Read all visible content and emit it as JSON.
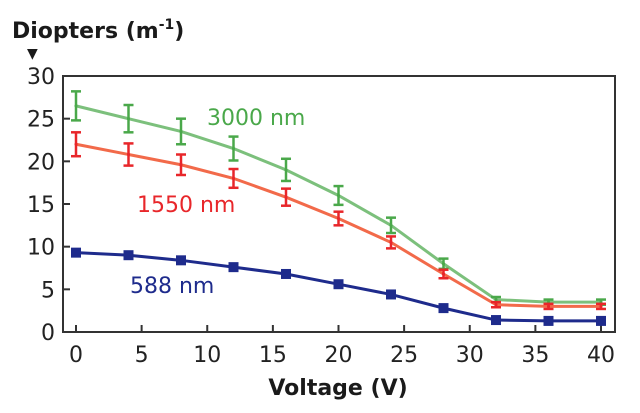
{
  "chart_data": {
    "type": "line",
    "title": "Diopters (m",
    "title_sup": "-1",
    "title_close": ")",
    "ylabel_arrow": "▼",
    "xlabel": "Voltage (V)",
    "ylabel": "Diopters (m-1)",
    "xlim": [
      0,
      40
    ],
    "ylim": [
      0,
      30
    ],
    "x_ticks": [
      0,
      5,
      10,
      15,
      20,
      25,
      30,
      35,
      40
    ],
    "y_ticks": [
      0,
      5,
      10,
      15,
      20,
      25,
      30
    ],
    "x_tick_labels": [
      "0",
      "5",
      "10",
      "15",
      "20",
      "25",
      "30",
      "35",
      "40"
    ],
    "y_tick_labels": [
      "0",
      "5",
      "10",
      "15",
      "20",
      "25",
      "30"
    ],
    "grid": false,
    "x": [
      0,
      4,
      8,
      12,
      16,
      20,
      24,
      28,
      32,
      36,
      40
    ],
    "series": [
      {
        "name": "3000 nm",
        "label": "3000 nm",
        "color": "#4aa84a",
        "line_color": "#7cc07c",
        "marker": "errorbar",
        "values": [
          26.5,
          25.0,
          23.5,
          21.5,
          19.0,
          16.0,
          12.5,
          8.0,
          3.8,
          3.5,
          3.5
        ],
        "errors": [
          1.7,
          1.6,
          1.5,
          1.4,
          1.3,
          1.1,
          0.9,
          0.6,
          0.3,
          0.3,
          0.3
        ]
      },
      {
        "name": "1550 nm",
        "label": "1550 nm",
        "color": "#e8262a",
        "line_color": "#f26a4a",
        "marker": "errorbar",
        "values": [
          22.0,
          20.8,
          19.6,
          18.0,
          15.8,
          13.3,
          10.5,
          6.8,
          3.2,
          3.0,
          3.0
        ],
        "errors": [
          1.4,
          1.3,
          1.2,
          1.1,
          1.0,
          0.8,
          0.7,
          0.5,
          0.3,
          0.3,
          0.3
        ]
      },
      {
        "name": "588 nm",
        "label": "588 nm",
        "color": "#1e2b8c",
        "line_color": "#1e2b8c",
        "marker": "square",
        "values": [
          9.3,
          9.0,
          8.4,
          7.6,
          6.8,
          5.6,
          4.4,
          2.8,
          1.4,
          1.3,
          1.3
        ],
        "errors": []
      }
    ]
  }
}
